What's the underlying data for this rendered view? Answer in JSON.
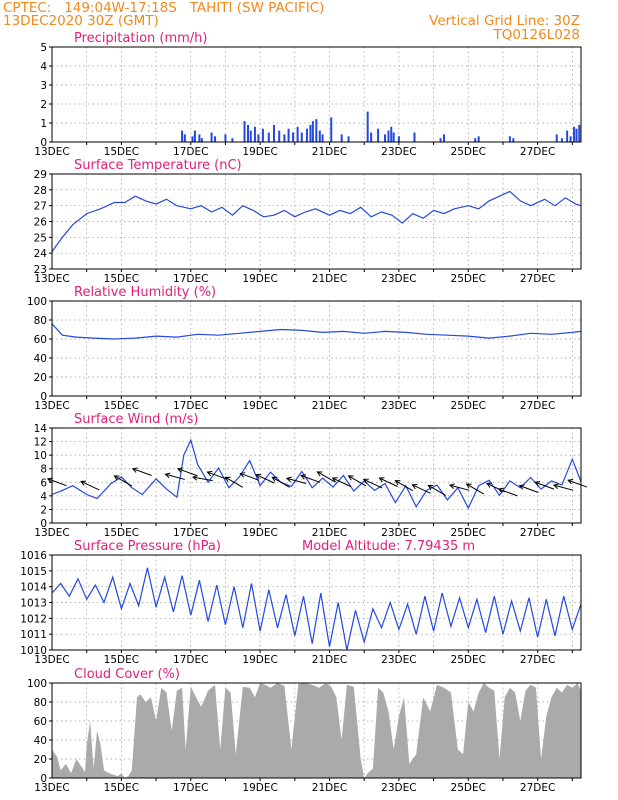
{
  "header": {
    "line1": "CPTEC:   149:04W-17:18S   TAHITI (SW PACIFIC)",
    "line2": "13DEC2020 30Z (GMT)",
    "grid_note": "Vertical Grid Line: 30Z",
    "code": "TQ0126L028"
  },
  "colors": {
    "header": "#f08a1c",
    "title": "#e0207a",
    "line": "#2448e0",
    "cloud": "#aaaaaa"
  },
  "x_tick_labels": [
    "13DEC",
    "15DEC",
    "17DEC",
    "19DEC",
    "21DEC",
    "23DEC",
    "25DEC",
    "27DEC"
  ],
  "x_tick_days": [
    0,
    2,
    4,
    6,
    8,
    10,
    12,
    14
  ],
  "x_range_days": [
    0,
    15.25
  ],
  "chart_data": [
    {
      "type": "bar",
      "title": "Precipitation (mm/h)",
      "ylim": [
        0,
        5
      ],
      "y_ticks": [
        "0",
        "1",
        "2",
        "3",
        "4",
        "5"
      ],
      "x_unit": "days since 13DEC 06Z",
      "x": [
        3.75,
        3.83,
        4.05,
        4.12,
        4.25,
        4.32,
        4.6,
        4.7,
        5.0,
        5.2,
        5.55,
        5.65,
        5.73,
        5.85,
        5.95,
        6.08,
        6.25,
        6.4,
        6.55,
        6.7,
        6.82,
        6.95,
        7.08,
        7.2,
        7.35,
        7.45,
        7.52,
        7.62,
        7.72,
        7.8,
        8.05,
        8.35,
        8.55,
        9.1,
        9.2,
        9.4,
        9.6,
        9.7,
        9.78,
        9.85,
        10.0,
        10.45,
        11.2,
        11.3,
        12.2,
        12.3,
        13.2,
        13.3,
        14.55,
        14.7,
        14.85,
        14.95,
        15.05,
        15.12,
        15.2
      ],
      "values": [
        0.6,
        0.4,
        0.3,
        0.6,
        0.4,
        0.2,
        0.5,
        0.3,
        0.4,
        0.2,
        1.1,
        0.9,
        0.6,
        0.8,
        0.4,
        0.7,
        0.5,
        0.9,
        0.6,
        0.4,
        0.7,
        0.5,
        0.8,
        0.5,
        0.7,
        0.9,
        1.1,
        1.2,
        0.6,
        0.4,
        1.3,
        0.4,
        0.3,
        1.6,
        0.5,
        0.7,
        0.4,
        0.6,
        0.8,
        0.5,
        0.3,
        0.5,
        0.2,
        0.4,
        0.2,
        0.3,
        0.3,
        0.2,
        0.4,
        0.2,
        0.6,
        0.3,
        0.8,
        0.7,
        0.9
      ]
    },
    {
      "type": "line",
      "title": "Surface Temperature (nC)",
      "ylim": [
        23,
        29
      ],
      "y_ticks": [
        "23",
        "24",
        "25",
        "26",
        "27",
        "28",
        "29"
      ],
      "x": [
        0,
        0.3,
        0.6,
        1,
        1.4,
        1.8,
        2.1,
        2.4,
        2.7,
        3,
        3.3,
        3.6,
        4,
        4.3,
        4.6,
        4.9,
        5.2,
        5.5,
        5.8,
        6.1,
        6.4,
        6.7,
        7,
        7.3,
        7.6,
        8,
        8.3,
        8.6,
        8.9,
        9.2,
        9.5,
        9.8,
        10.1,
        10.4,
        10.7,
        11,
        11.3,
        11.6,
        12,
        12.3,
        12.6,
        12.9,
        13.2,
        13.5,
        13.8,
        14.2,
        14.5,
        14.8,
        15.1,
        15.25
      ],
      "values": [
        24.1,
        25.0,
        25.8,
        26.5,
        26.8,
        27.2,
        27.2,
        27.6,
        27.3,
        27.1,
        27.4,
        27.0,
        26.8,
        27.0,
        26.6,
        26.9,
        26.4,
        27.0,
        26.7,
        26.3,
        26.4,
        26.7,
        26.3,
        26.6,
        26.8,
        26.4,
        26.7,
        26.5,
        26.9,
        26.3,
        26.6,
        26.4,
        25.9,
        26.5,
        26.2,
        26.7,
        26.5,
        26.8,
        27.0,
        26.8,
        27.3,
        27.6,
        27.9,
        27.3,
        27.0,
        27.4,
        27.0,
        27.5,
        27.1,
        27.0
      ]
    },
    {
      "type": "line",
      "title": "Relative Humidity (%)",
      "ylim": [
        0,
        100
      ],
      "y_ticks": [
        "0",
        "20",
        "40",
        "60",
        "80",
        "100"
      ],
      "x": [
        0,
        0.3,
        0.7,
        1.2,
        1.8,
        2.4,
        3,
        3.6,
        4.2,
        4.8,
        5.4,
        6,
        6.6,
        7.2,
        7.8,
        8.4,
        9,
        9.6,
        10.2,
        10.8,
        11.4,
        12,
        12.6,
        13.2,
        13.8,
        14.4,
        15,
        15.25
      ],
      "values": [
        76,
        64,
        62,
        61,
        60,
        61,
        63,
        62,
        65,
        64,
        66,
        68,
        70,
        69,
        67,
        68,
        66,
        68,
        67,
        65,
        64,
        63,
        61,
        63,
        66,
        65,
        67,
        68
      ]
    },
    {
      "type": "line",
      "title": "Surface Wind (m/s)",
      "ylim": [
        0,
        14
      ],
      "y_ticks": [
        "0",
        "2",
        "4",
        "6",
        "8",
        "10",
        "12",
        "14"
      ],
      "x": [
        0,
        0.3,
        0.6,
        1,
        1.3,
        1.7,
        2,
        2.3,
        2.6,
        3,
        3.3,
        3.6,
        3.8,
        4,
        4.2,
        4.5,
        4.8,
        5.1,
        5.4,
        5.7,
        6,
        6.3,
        6.6,
        6.9,
        7.2,
        7.5,
        7.8,
        8.1,
        8.4,
        8.7,
        9,
        9.3,
        9.6,
        9.9,
        10.2,
        10.5,
        10.8,
        11.1,
        11.4,
        11.7,
        12,
        12.3,
        12.6,
        12.9,
        13.2,
        13.5,
        13.8,
        14.1,
        14.4,
        14.7,
        15,
        15.25
      ],
      "values": [
        4.2,
        4.8,
        5.5,
        4.2,
        3.6,
        5.8,
        6.8,
        5.2,
        4.2,
        6.5,
        5.0,
        3.8,
        10.0,
        12.2,
        8.6,
        6.0,
        8.1,
        5.2,
        6.8,
        9.2,
        5.5,
        7.5,
        6.0,
        5.4,
        7.6,
        5.2,
        6.6,
        5.3,
        7.0,
        4.7,
        6.2,
        4.8,
        5.8,
        3.0,
        5.5,
        2.4,
        4.8,
        5.6,
        3.4,
        5.2,
        2.2,
        5.5,
        6.3,
        4.1,
        6.2,
        5.2,
        6.7,
        5.0,
        6.2,
        5.6,
        9.4,
        6.1
      ],
      "arrows": {
        "x": [
          0.15,
          1.1,
          2.05,
          2.6,
          3.55,
          3.9,
          4.35,
          4.75,
          5.25,
          5.7,
          6.15,
          6.6,
          7.05,
          7.45,
          7.9,
          8.35,
          8.8,
          9.25,
          9.7,
          10.15,
          10.65,
          11.1,
          11.75,
          12.2,
          12.8,
          13.15,
          13.75,
          14.2,
          14.75,
          15.15
        ],
        "speed": [
          6.0,
          5.5,
          6.2,
          7.5,
          6.8,
          7.5,
          6.5,
          7.0,
          6.0,
          6.8,
          6.5,
          6.0,
          6.2,
          6.5,
          6.8,
          6.0,
          6.2,
          5.8,
          6.0,
          5.5,
          5.0,
          4.8,
          5.2,
          5.0,
          5.2,
          4.5,
          5.0,
          5.5,
          5.2,
          5.8
        ],
        "dir_deg": [
          110,
          115,
          120,
          110,
          105,
          110,
          100,
          110,
          120,
          110,
          115,
          120,
          105,
          110,
          120,
          115,
          120,
          115,
          115,
          120,
          115,
          120,
          105,
          120,
          115,
          110,
          110,
          110,
          105,
          110
        ]
      }
    },
    {
      "type": "line",
      "title": "Surface Pressure (hPa)",
      "annotation": "Model Altitude: 7.79435 m",
      "ylim": [
        1010,
        1016
      ],
      "y_ticks": [
        "1010",
        "1011",
        "1012",
        "1013",
        "1014",
        "1015",
        "1016"
      ],
      "x": [
        0,
        0.25,
        0.5,
        0.75,
        1,
        1.25,
        1.5,
        1.75,
        2,
        2.25,
        2.5,
        2.75,
        3,
        3.25,
        3.5,
        3.75,
        4,
        4.25,
        4.5,
        4.75,
        5,
        5.25,
        5.5,
        5.75,
        6,
        6.25,
        6.5,
        6.75,
        7,
        7.25,
        7.5,
        7.75,
        8,
        8.25,
        8.5,
        8.75,
        9,
        9.25,
        9.5,
        9.75,
        10,
        10.25,
        10.5,
        10.75,
        11,
        11.25,
        11.5,
        11.75,
        12,
        12.25,
        12.5,
        12.75,
        13,
        13.25,
        13.5,
        13.75,
        14,
        14.25,
        14.5,
        14.75,
        15,
        15.25
      ],
      "values": [
        1013.6,
        1014.2,
        1013.4,
        1014.5,
        1013.2,
        1014.1,
        1013.0,
        1014.6,
        1012.6,
        1014.2,
        1012.8,
        1015.2,
        1012.7,
        1014.6,
        1012.4,
        1014.7,
        1012.2,
        1014.4,
        1011.8,
        1014.1,
        1011.6,
        1014.0,
        1011.4,
        1014.2,
        1011.2,
        1013.8,
        1011.4,
        1013.5,
        1010.9,
        1013.4,
        1010.4,
        1013.6,
        1010.2,
        1013.0,
        1010.0,
        1012.5,
        1010.5,
        1012.6,
        1011.4,
        1013.0,
        1011.3,
        1012.9,
        1011.0,
        1013.4,
        1011.2,
        1013.6,
        1011.5,
        1013.3,
        1011.4,
        1013.2,
        1011.1,
        1013.4,
        1011.0,
        1013.1,
        1011.2,
        1013.3,
        1010.8,
        1013.2,
        1010.9,
        1013.4,
        1011.3,
        1012.9
      ]
    },
    {
      "type": "area",
      "title": "Cloud Cover (%)",
      "ylim": [
        0,
        100
      ],
      "y_ticks": [
        "0",
        "20",
        "40",
        "60",
        "80",
        "100"
      ],
      "x": [
        0,
        0.15,
        0.25,
        0.4,
        0.55,
        0.7,
        0.85,
        0.95,
        1.0,
        1.1,
        1.2,
        1.3,
        1.4,
        1.5,
        1.65,
        1.8,
        1.9,
        2.0,
        2.1,
        2.2,
        2.3,
        2.45,
        2.55,
        2.7,
        2.85,
        3.0,
        3.15,
        3.3,
        3.45,
        3.6,
        3.75,
        3.85,
        4.0,
        4.15,
        4.3,
        4.5,
        4.7,
        4.85,
        5.0,
        5.15,
        5.3,
        5.5,
        5.7,
        5.85,
        6.0,
        6.15,
        6.3,
        6.5,
        6.7,
        6.9,
        7.1,
        7.3,
        7.5,
        7.7,
        7.9,
        8.05,
        8.2,
        8.35,
        8.5,
        8.7,
        8.9,
        9.0,
        9.1,
        9.25,
        9.4,
        9.55,
        9.7,
        9.85,
        10.0,
        10.15,
        10.3,
        10.5,
        10.7,
        10.9,
        11.1,
        11.3,
        11.5,
        11.7,
        11.85,
        12.0,
        12.15,
        12.3,
        12.45,
        12.6,
        12.75,
        12.9,
        13.05,
        13.2,
        13.35,
        13.5,
        13.65,
        13.8,
        13.95,
        14.1,
        14.25,
        14.4,
        14.55,
        14.7,
        14.85,
        15.0,
        15.15,
        15.25
      ],
      "values": [
        30,
        22,
        8,
        15,
        5,
        20,
        12,
        6,
        35,
        60,
        10,
        50,
        35,
        8,
        5,
        3,
        2,
        5,
        0,
        2,
        8,
        85,
        88,
        80,
        85,
        60,
        95,
        90,
        50,
        92,
        95,
        30,
        96,
        85,
        75,
        92,
        98,
        30,
        95,
        90,
        25,
        96,
        95,
        85,
        100,
        98,
        95,
        100,
        97,
        30,
        99,
        100,
        98,
        95,
        100,
        96,
        85,
        40,
        98,
        96,
        20,
        0,
        5,
        10,
        95,
        90,
        70,
        30,
        65,
        85,
        15,
        25,
        85,
        70,
        98,
        95,
        90,
        30,
        25,
        80,
        70,
        90,
        100,
        95,
        92,
        20,
        85,
        95,
        90,
        60,
        92,
        98,
        95,
        20,
        65,
        85,
        95,
        90,
        98,
        95,
        100,
        92
      ]
    }
  ]
}
